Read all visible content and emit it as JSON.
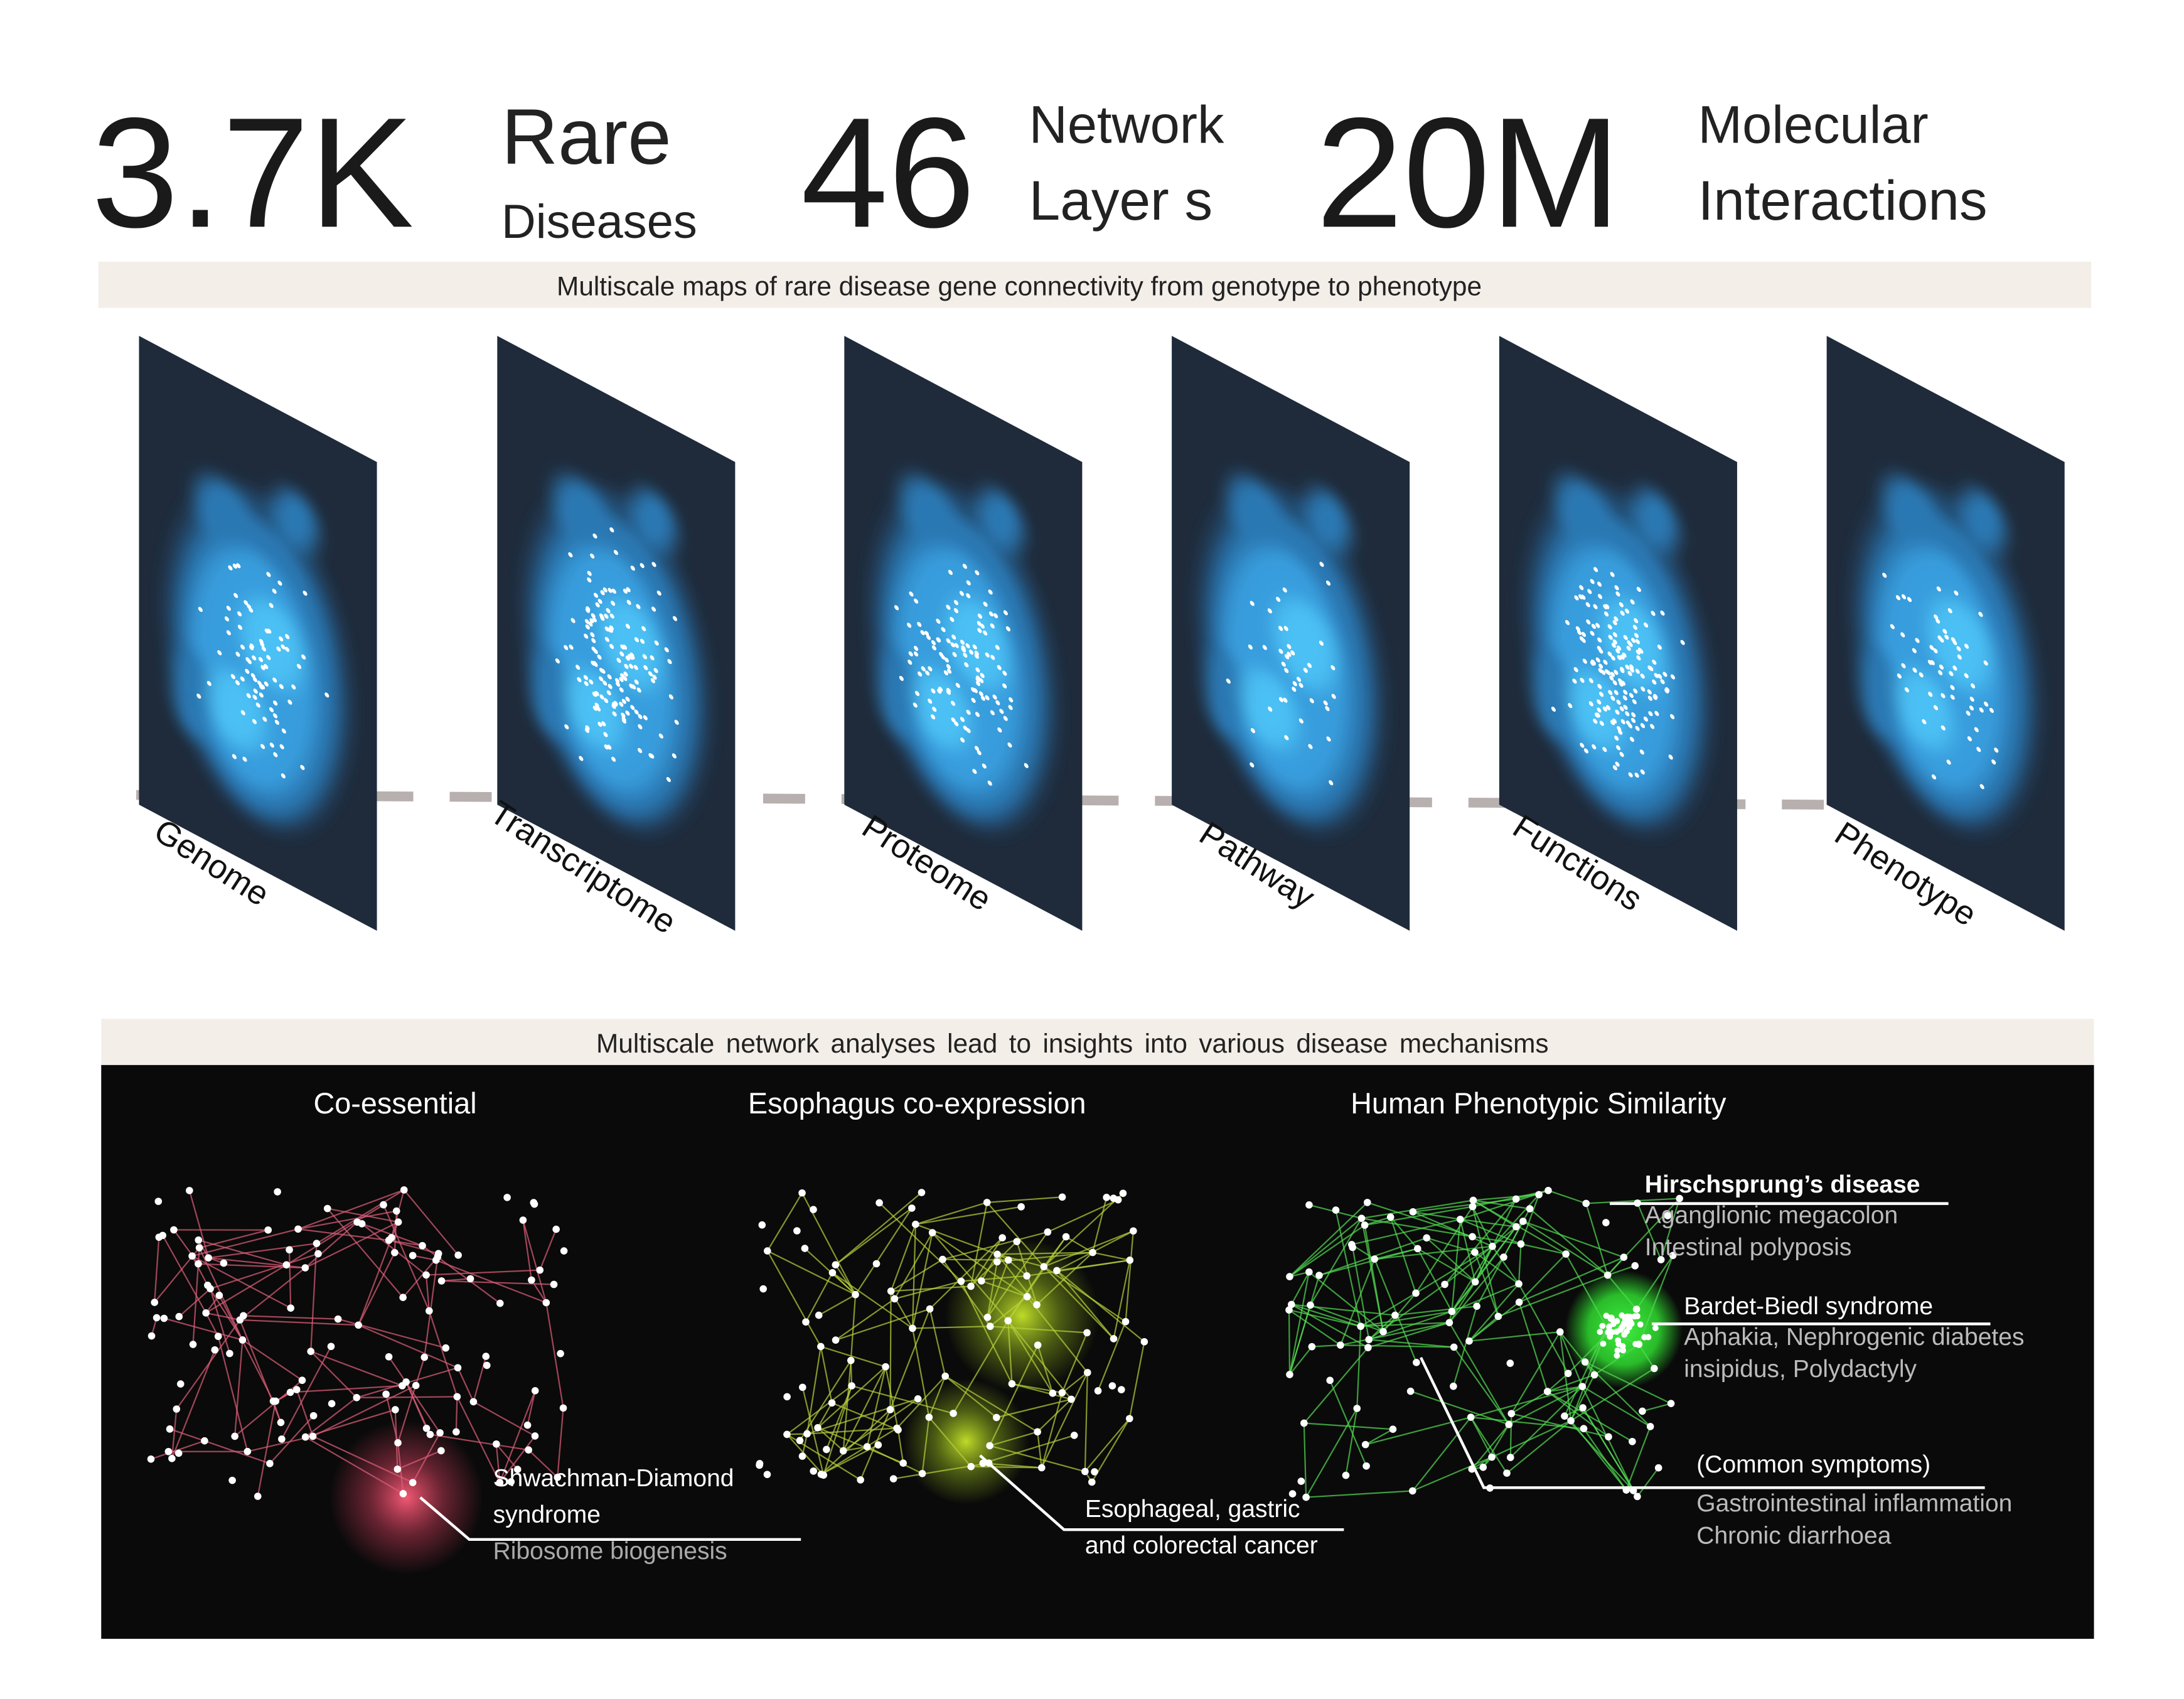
{
  "header": {
    "stats": [
      {
        "number": "3.7K",
        "label": [
          "Rare",
          "Diseases"
        ]
      },
      {
        "number": "46",
        "label": [
          "Network",
          "Layer s"
        ]
      },
      {
        "number": "20M",
        "label": [
          "Molecular",
          "Interactions"
        ]
      }
    ]
  },
  "maps": {
    "caption": "Multiscale maps of rare disease gene connectivity from genotype to phenotype",
    "layers": [
      "Genome",
      "Transcriptome",
      "Proteome",
      "Pathway",
      "Functions",
      "Phenotype"
    ]
  },
  "analyses": {
    "caption": "Multiscale network analyses lead to insights into various disease mechanisms",
    "panels": [
      {
        "title": "Co-essential",
        "annotations": [
          {
            "lines": [
              "Shwachman-Diamond",
              "syndrome",
              "Ribosome biogenesis"
            ]
          }
        ]
      },
      {
        "title": "Esophagus co-expression",
        "annotations": [
          {
            "lines": [
              "Esophageal, gastric",
              "and colorectal cancer"
            ]
          }
        ]
      },
      {
        "title": "Human Phenotypic Similarity",
        "annotations": [
          {
            "lines": [
              "Hirschsprung’s disease",
              "Aganglionic megacolon",
              "Intestinal polyposis"
            ]
          },
          {
            "lines": [
              "Bardet-Biedl syndrome",
              "Aphakia, Nephrogenic diabetes",
              "insipidus, Polydactyly"
            ]
          },
          {
            "lines": [
              "(Common symptoms)",
              "Gastrointestinal inflammation",
              "Chronic diarrhoea"
            ]
          }
        ]
      }
    ]
  }
}
